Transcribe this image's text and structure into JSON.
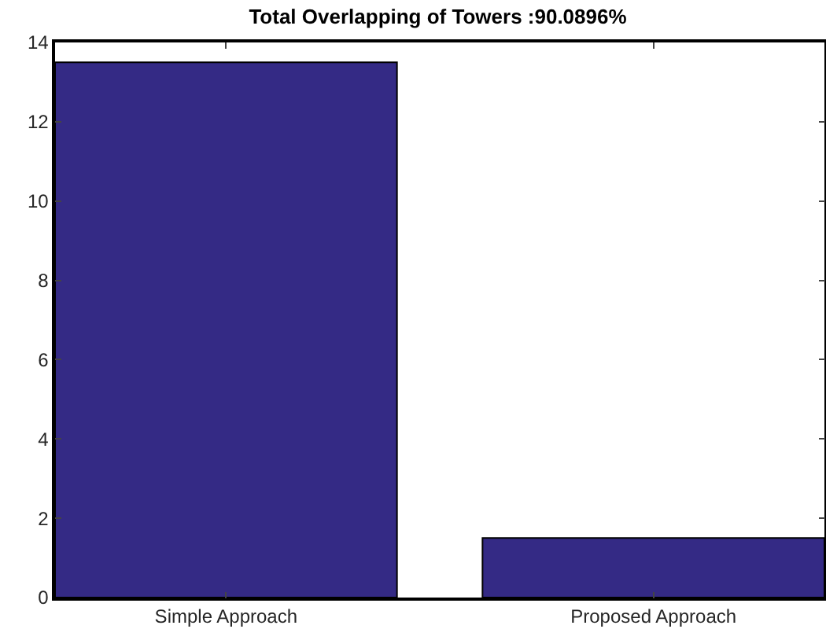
{
  "chart_data": {
    "type": "bar",
    "title": "Total Overlapping of Towers :90.0896%",
    "categories": [
      "Simple Approach",
      "Proposed Approach"
    ],
    "values": [
      13.5,
      1.5
    ],
    "color": "#342a85",
    "ylim": [
      0,
      14
    ],
    "yticks": [
      0,
      2,
      4,
      6,
      8,
      10,
      12,
      14
    ],
    "grid": false
  }
}
